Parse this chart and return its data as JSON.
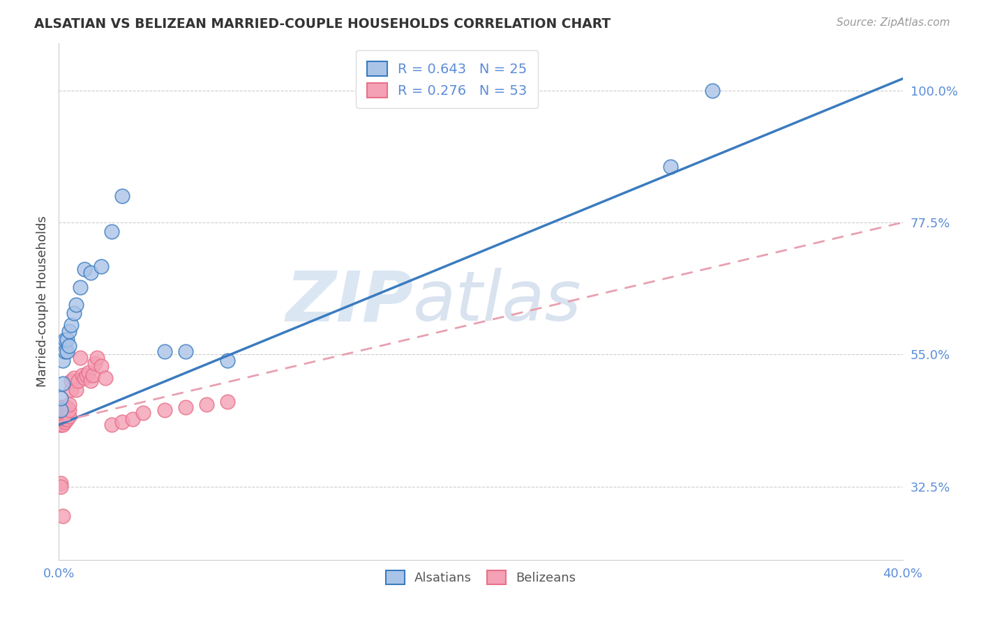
{
  "title": "ALSATIAN VS BELIZEAN MARRIED-COUPLE HOUSEHOLDS CORRELATION CHART",
  "source": "Source: ZipAtlas.com",
  "ylabel": "Married-couple Households",
  "background_color": "#ffffff",
  "grid_color": "#cccccc",
  "alsatian_color": "#aac4e8",
  "belizean_color": "#f4a0b5",
  "alsatian_line_color": "#3a7bbf",
  "belizean_line_color": "#e8708a",
  "belizean_dashed_color": "#e8a0b0",
  "title_color": "#333333",
  "tick_color": "#5b8dd9",
  "source_color": "#999999",
  "legend_r_alsatian": "R = 0.643",
  "legend_n_alsatian": "N = 25",
  "legend_r_belizean": "R = 0.276",
  "legend_n_belizean": "N = 53",
  "watermark_zip": "ZIP",
  "watermark_atlas": "atlas",
  "xmin": 0.0,
  "xmax": 0.4,
  "ymin": 0.2,
  "ymax": 1.08,
  "ytick_vals": [
    0.325,
    0.55,
    0.775,
    1.0
  ],
  "ytick_labels": [
    "32.5%",
    "55.0%",
    "77.5%",
    "100.0%"
  ],
  "xtick_vals": [
    0.0,
    0.4
  ],
  "xtick_labels": [
    "0.0%",
    "40.0%"
  ],
  "als_x": [
    0.001,
    0.001,
    0.002,
    0.002,
    0.002,
    0.003,
    0.003,
    0.004,
    0.004,
    0.005,
    0.005,
    0.006,
    0.007,
    0.008,
    0.01,
    0.012,
    0.015,
    0.02,
    0.025,
    0.03,
    0.05,
    0.06,
    0.08,
    0.29,
    0.31
  ],
  "als_y": [
    0.455,
    0.475,
    0.5,
    0.54,
    0.57,
    0.555,
    0.575,
    0.555,
    0.575,
    0.565,
    0.59,
    0.6,
    0.62,
    0.635,
    0.665,
    0.695,
    0.69,
    0.7,
    0.76,
    0.82,
    0.555,
    0.555,
    0.54,
    0.87,
    1.0
  ],
  "bel_x": [
    0.001,
    0.001,
    0.001,
    0.001,
    0.001,
    0.001,
    0.001,
    0.001,
    0.002,
    0.002,
    0.002,
    0.002,
    0.002,
    0.002,
    0.002,
    0.003,
    0.003,
    0.003,
    0.003,
    0.003,
    0.004,
    0.004,
    0.004,
    0.005,
    0.005,
    0.005,
    0.006,
    0.006,
    0.007,
    0.008,
    0.009,
    0.01,
    0.011,
    0.012,
    0.013,
    0.014,
    0.015,
    0.016,
    0.017,
    0.018,
    0.02,
    0.022,
    0.025,
    0.03,
    0.035,
    0.04,
    0.05,
    0.06,
    0.07,
    0.08,
    0.001,
    0.001,
    0.002
  ],
  "bel_y": [
    0.43,
    0.435,
    0.44,
    0.445,
    0.45,
    0.455,
    0.46,
    0.43,
    0.435,
    0.44,
    0.445,
    0.45,
    0.455,
    0.46,
    0.43,
    0.435,
    0.44,
    0.445,
    0.45,
    0.455,
    0.44,
    0.45,
    0.46,
    0.445,
    0.455,
    0.465,
    0.49,
    0.505,
    0.51,
    0.49,
    0.505,
    0.545,
    0.515,
    0.51,
    0.515,
    0.52,
    0.505,
    0.515,
    0.535,
    0.545,
    0.53,
    0.51,
    0.43,
    0.435,
    0.44,
    0.45,
    0.455,
    0.46,
    0.465,
    0.47,
    0.33,
    0.325,
    0.275
  ],
  "als_line_x": [
    0.0,
    0.4
  ],
  "als_line_y": [
    0.43,
    1.02
  ],
  "bel_line_x": [
    0.0,
    0.4
  ],
  "bel_line_y": [
    0.435,
    0.775
  ]
}
